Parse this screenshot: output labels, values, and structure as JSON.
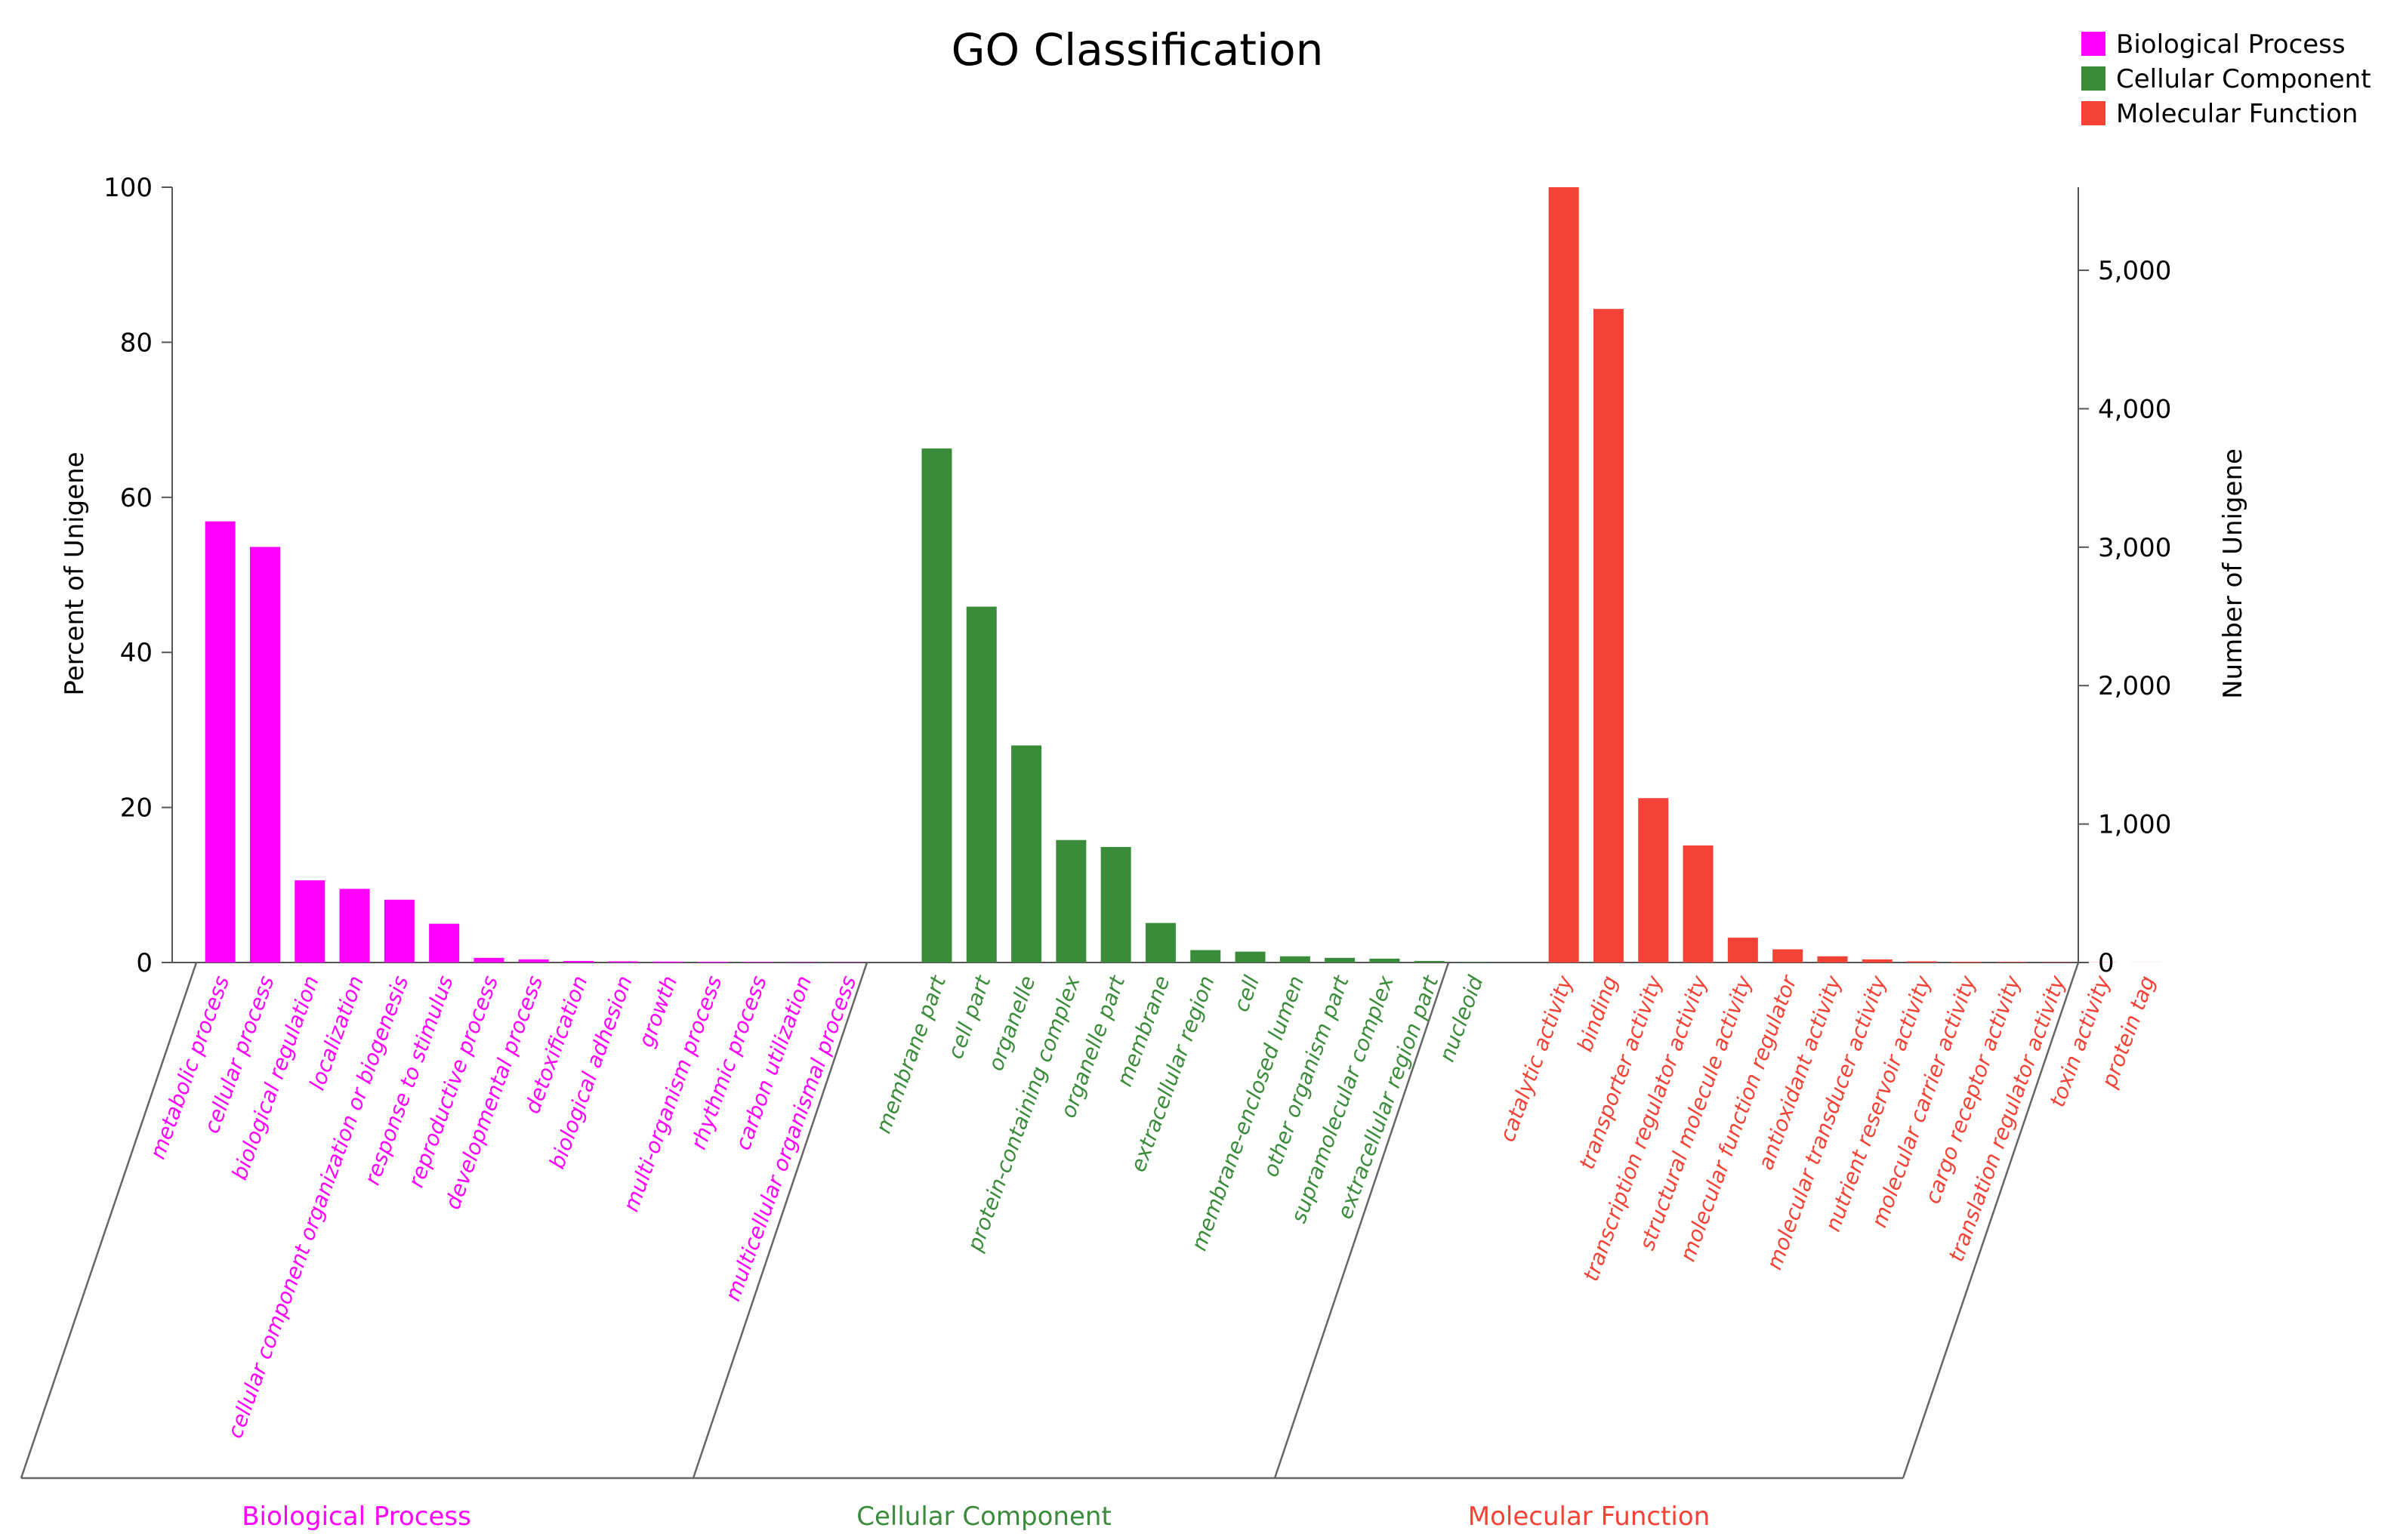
{
  "chart_data": {
    "type": "bar",
    "title": "GO Classification",
    "ylabel_left": "Percent of Unigene",
    "ylabel_right": "Number of Unigene",
    "ylim_left": [
      0,
      100
    ],
    "left_ticks": [
      0,
      20,
      40,
      60,
      80,
      100
    ],
    "left_tick_labels": [
      "0",
      "20",
      "40",
      "60",
      "80",
      "100"
    ],
    "right_max": 5600,
    "right_ticks": [
      0,
      1000,
      2000,
      3000,
      4000,
      5000
    ],
    "right_tick_labels": [
      "0",
      "1,000",
      "2,000",
      "3,000",
      "4,000",
      "5,000"
    ],
    "legend": [
      {
        "label": "Biological Process",
        "color": "#ff00ff"
      },
      {
        "label": "Cellular Component",
        "color": "#3a8c3a"
      },
      {
        "label": "Molecular Function",
        "color": "#f44336"
      }
    ],
    "series": [
      {
        "name": "Biological Process",
        "color": "#ff00ff",
        "categories": [
          "metabolic process",
          "cellular process",
          "biological regulation",
          "localization",
          "cellular component organization or biogenesis",
          "response to stimulus",
          "reproductive process",
          "developmental process",
          "detoxification",
          "biological adhesion",
          "growth",
          "multi-organism process",
          "rhythmic process",
          "carbon utilization",
          "multicellular organismal process"
        ],
        "values": [
          56.9,
          53.6,
          10.6,
          9.5,
          8.1,
          5.0,
          0.6,
          0.4,
          0.2,
          0.15,
          0.12,
          0.1,
          0.06,
          0.04,
          0.03
        ]
      },
      {
        "name": "Cellular Component",
        "color": "#3a8c3a",
        "categories": [
          "membrane part",
          "cell part",
          "organelle",
          "protein-containing complex",
          "organelle part",
          "membrane",
          "extracellular region",
          "cell",
          "membrane-enclosed lumen",
          "other organism part",
          "supramolecular complex",
          "extracellular region part",
          "nucleoid"
        ],
        "values": [
          66.3,
          45.9,
          28.0,
          15.8,
          14.9,
          5.1,
          1.6,
          1.4,
          0.8,
          0.6,
          0.5,
          0.2,
          0.05
        ]
      },
      {
        "name": "Molecular Function",
        "color": "#f44336",
        "categories": [
          "catalytic activity",
          "binding",
          "transporter activity",
          "transcription regulator activity",
          "structural molecule activity",
          "molecular function regulator",
          "antioxidant activity",
          "molecular transducer activity",
          "nutrient reservoir activity",
          "molecular carrier activity",
          "cargo receptor activity",
          "translation regulator activity",
          "toxin activity",
          "protein tag"
        ],
        "values": [
          100.0,
          84.3,
          21.2,
          15.1,
          3.2,
          1.7,
          0.8,
          0.4,
          0.15,
          0.1,
          0.06,
          0.04,
          0.02,
          0.01
        ]
      }
    ]
  }
}
